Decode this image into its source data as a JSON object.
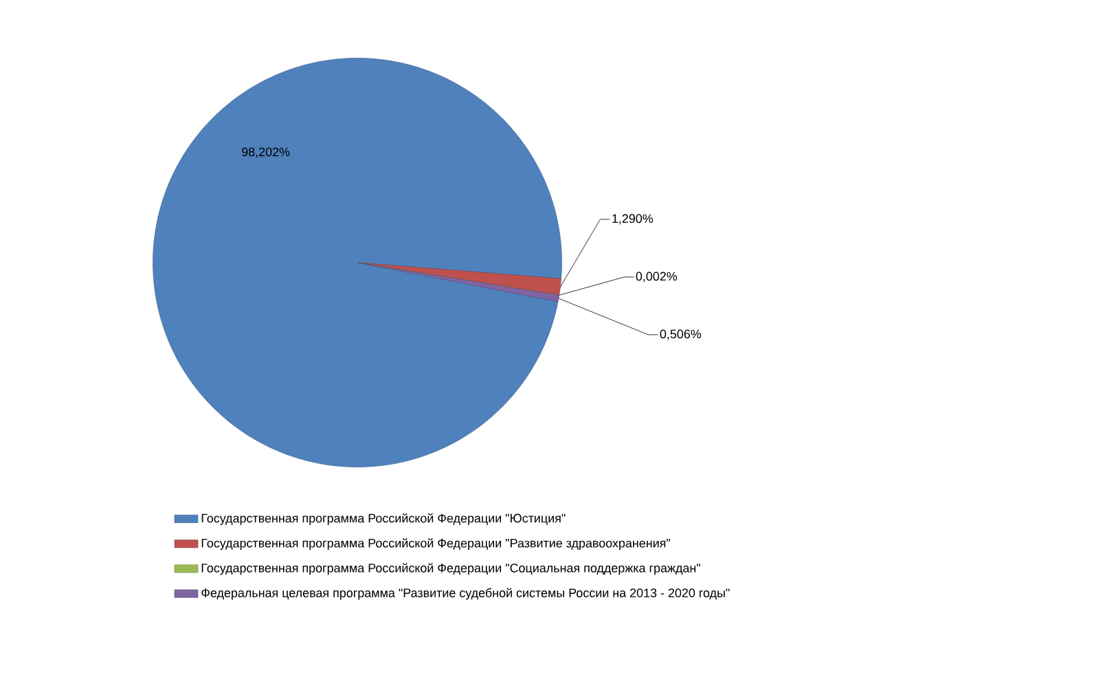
{
  "chart_data": {
    "type": "pie",
    "categories": [
      "Государственная программа Российской Федерации \"Юстиция\"",
      "Государственная программа Российской Федерации \"Развитие здравоохранения\"",
      "Государственная программа Российской Федерации \"Социальная поддержка граждан\"",
      "Федеральная целевая программа \"Развитие судебной системы России на 2013 - 2020 годы\""
    ],
    "values": [
      98.202,
      1.29,
      0.002,
      0.506
    ],
    "colors": [
      "#4f81bd",
      "#c0504d",
      "#9bbb59",
      "#8064a2"
    ],
    "value_labels": [
      "98,202%",
      "1,290%",
      "0,002%",
      "0,506%"
    ],
    "legend": "bottom"
  }
}
